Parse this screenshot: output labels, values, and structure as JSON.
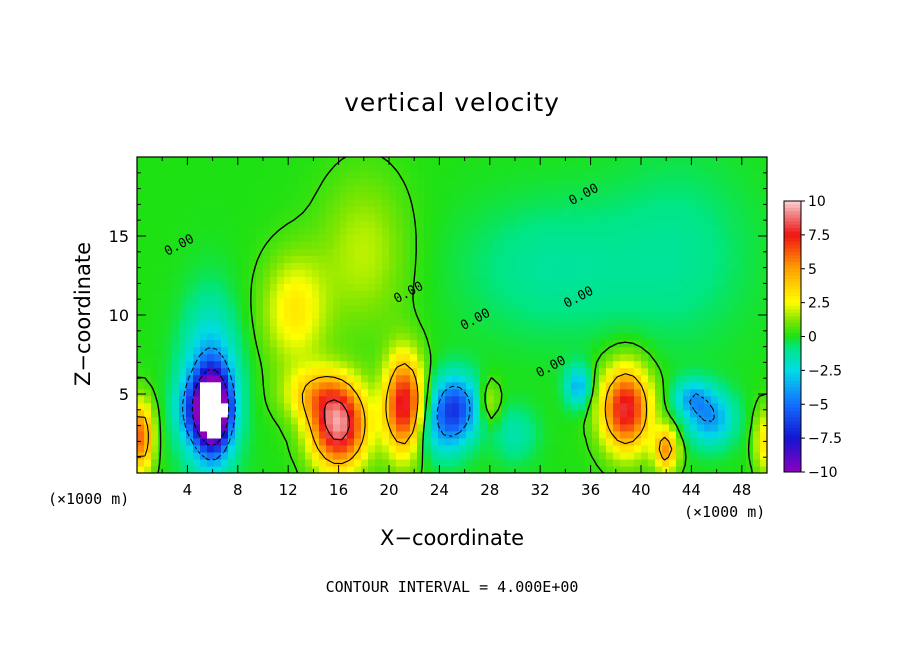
{
  "chart_data": {
    "type": "heatmap",
    "title": "vertical velocity",
    "xlabel": "X−coordinate",
    "ylabel": "Z−coordinate",
    "x_unit_left": "(×1000 m)",
    "x_unit_right": "(×1000 m)",
    "xlim": [
      0,
      50
    ],
    "ylim": [
      0,
      20
    ],
    "x_ticks": [
      4,
      8,
      12,
      16,
      20,
      24,
      28,
      32,
      36,
      40,
      44,
      48
    ],
    "y_ticks": [
      5,
      10,
      15
    ],
    "colorbar": {
      "min": -10,
      "max": 10,
      "tick_values": [
        10,
        7.5,
        5,
        2.5,
        0,
        -2.5,
        -5,
        -7.5,
        -10
      ],
      "tick_labels": [
        "10",
        "7.5",
        "5",
        "2.5",
        "0",
        "−2.5",
        "−5",
        "−7.5",
        "−10"
      ]
    },
    "contour_interval_label": "CONTOUR INTERVAL = 4.000E+00",
    "contour_labels": [
      {
        "text": "0.00",
        "x": 3.5,
        "z": 14.2
      },
      {
        "text": "0.00",
        "x": 21.7,
        "z": 11.2
      },
      {
        "text": "0.00",
        "x": 27.0,
        "z": 9.5
      },
      {
        "text": "0.00",
        "x": 35.2,
        "z": 10.9
      },
      {
        "text": "0.00",
        "x": 35.6,
        "z": 17.4
      },
      {
        "text": "0.00",
        "x": 33.0,
        "z": 6.5
      }
    ],
    "features": [
      {
        "x": 6.0,
        "z": 4.0,
        "w": -14.0,
        "sx": 0.9,
        "sz": 1.6
      },
      {
        "x": 5.8,
        "z": 5.2,
        "w": -4.5,
        "sx": 1.5,
        "sz": 3.5
      },
      {
        "x": 4.2,
        "z": 4.0,
        "w": -2.5,
        "sx": 0.9,
        "sz": 1.4
      },
      {
        "x": 0.3,
        "z": 2.3,
        "w": 6.0,
        "sx": 0.7,
        "sz": 1.6
      },
      {
        "x": 12.5,
        "z": 10.3,
        "w": 3.0,
        "sx": 1.8,
        "sz": 2.5
      },
      {
        "x": 16.0,
        "z": 3.0,
        "w": 9.0,
        "sx": 1.6,
        "sz": 1.9
      },
      {
        "x": 14.0,
        "z": 5.0,
        "w": 3.0,
        "sx": 1.8,
        "sz": 1.2
      },
      {
        "x": 21.2,
        "z": 4.3,
        "w": 8.0,
        "sx": 1.1,
        "sz": 2.2
      },
      {
        "x": 25.2,
        "z": 4.2,
        "w": -6.0,
        "sx": 1.3,
        "sz": 1.4
      },
      {
        "x": 24.0,
        "z": 2.5,
        "w": -2.0,
        "sx": 1.5,
        "sz": 1.3
      },
      {
        "x": 38.8,
        "z": 4.1,
        "w": 8.0,
        "sx": 1.4,
        "sz": 1.9
      },
      {
        "x": 42.0,
        "z": 1.5,
        "w": 5.0,
        "sx": 0.7,
        "sz": 1.0
      },
      {
        "x": 45.5,
        "z": 3.5,
        "w": -4.0,
        "sx": 1.3,
        "sz": 1.2
      },
      {
        "x": 44.0,
        "z": 4.8,
        "w": -3.0,
        "sx": 1.0,
        "sz": 0.8
      },
      {
        "x": 35.0,
        "z": 5.5,
        "w": -3.5,
        "sx": 0.7,
        "sz": 0.9
      },
      {
        "x": 30.0,
        "z": 2.5,
        "w": -1.5,
        "sx": 1.2,
        "sz": 1.2
      },
      {
        "x": 18.0,
        "z": 14.0,
        "w": 1.8,
        "sx": 2.5,
        "sz": 3.5
      },
      {
        "x": 33.0,
        "z": 13.0,
        "w": -1.2,
        "sx": 5.0,
        "sz": 3.0
      },
      {
        "x": 43.0,
        "z": 14.0,
        "w": -1.0,
        "sx": 4.0,
        "sz": 4.0
      },
      {
        "x": 49.8,
        "z": 2.0,
        "w": 3.0,
        "sx": 0.6,
        "sz": 1.5
      },
      {
        "x": 28.0,
        "z": 4.5,
        "w": 2.0,
        "sx": 0.6,
        "sz": 1.0
      }
    ]
  }
}
